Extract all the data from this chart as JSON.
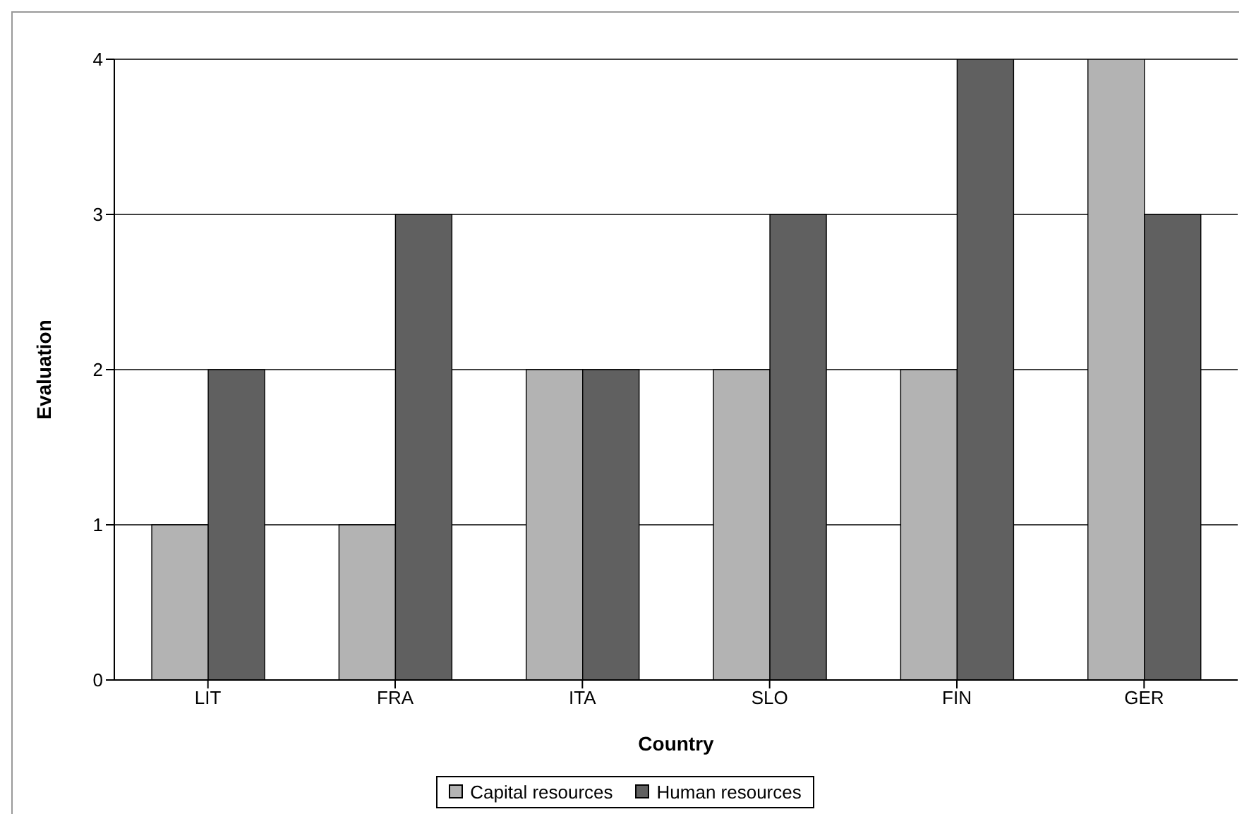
{
  "chart_data": {
    "type": "bar",
    "xlabel": "Country",
    "ylabel": "Evaluation",
    "categories": [
      "LIT",
      "FRA",
      "ITA",
      "SLO",
      "FIN",
      "GER"
    ],
    "series": [
      {
        "name": "Capital resources",
        "color": "#b3b3b3",
        "values": [
          1,
          1,
          2,
          2,
          2,
          4
        ]
      },
      {
        "name": "Human resources",
        "color": "#606060",
        "values": [
          2,
          3,
          2,
          3,
          4,
          3
        ]
      }
    ],
    "ylim": [
      0,
      4
    ],
    "yticks": [
      0,
      1,
      2,
      3,
      4
    ],
    "grid": "y",
    "legend": "bottom"
  }
}
